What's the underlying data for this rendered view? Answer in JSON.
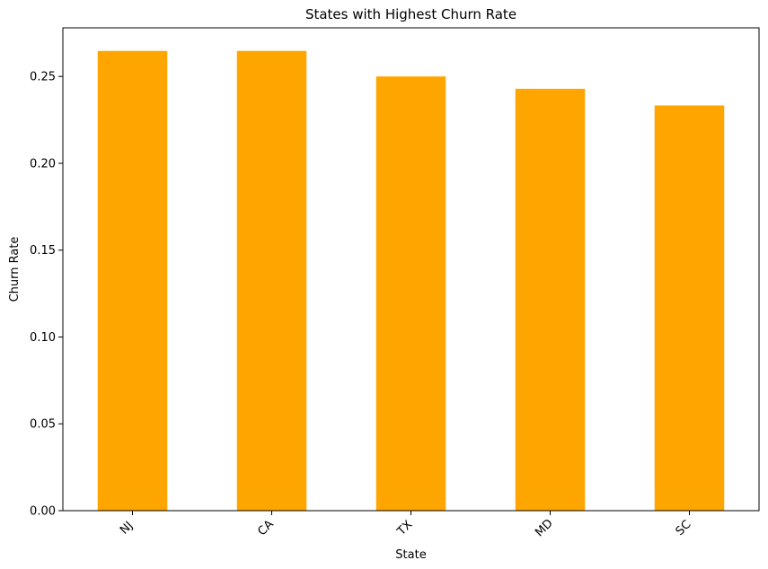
{
  "chart_data": {
    "type": "bar",
    "title": "States with Highest Churn Rate",
    "xlabel": "State",
    "ylabel": "Churn Rate",
    "categories": [
      "NJ",
      "CA",
      "TX",
      "MD",
      "SC"
    ],
    "values": [
      0.2647,
      0.2647,
      0.25,
      0.2429,
      0.2333
    ],
    "ylim": [
      0,
      0.278
    ],
    "yticks": [
      "0.00",
      "0.05",
      "0.10",
      "0.15",
      "0.20",
      "0.25"
    ],
    "ytick_values": [
      0,
      0.05,
      0.1,
      0.15,
      0.2,
      0.25
    ],
    "bar_color": "#FFA500",
    "grid": false,
    "legend": "none"
  }
}
